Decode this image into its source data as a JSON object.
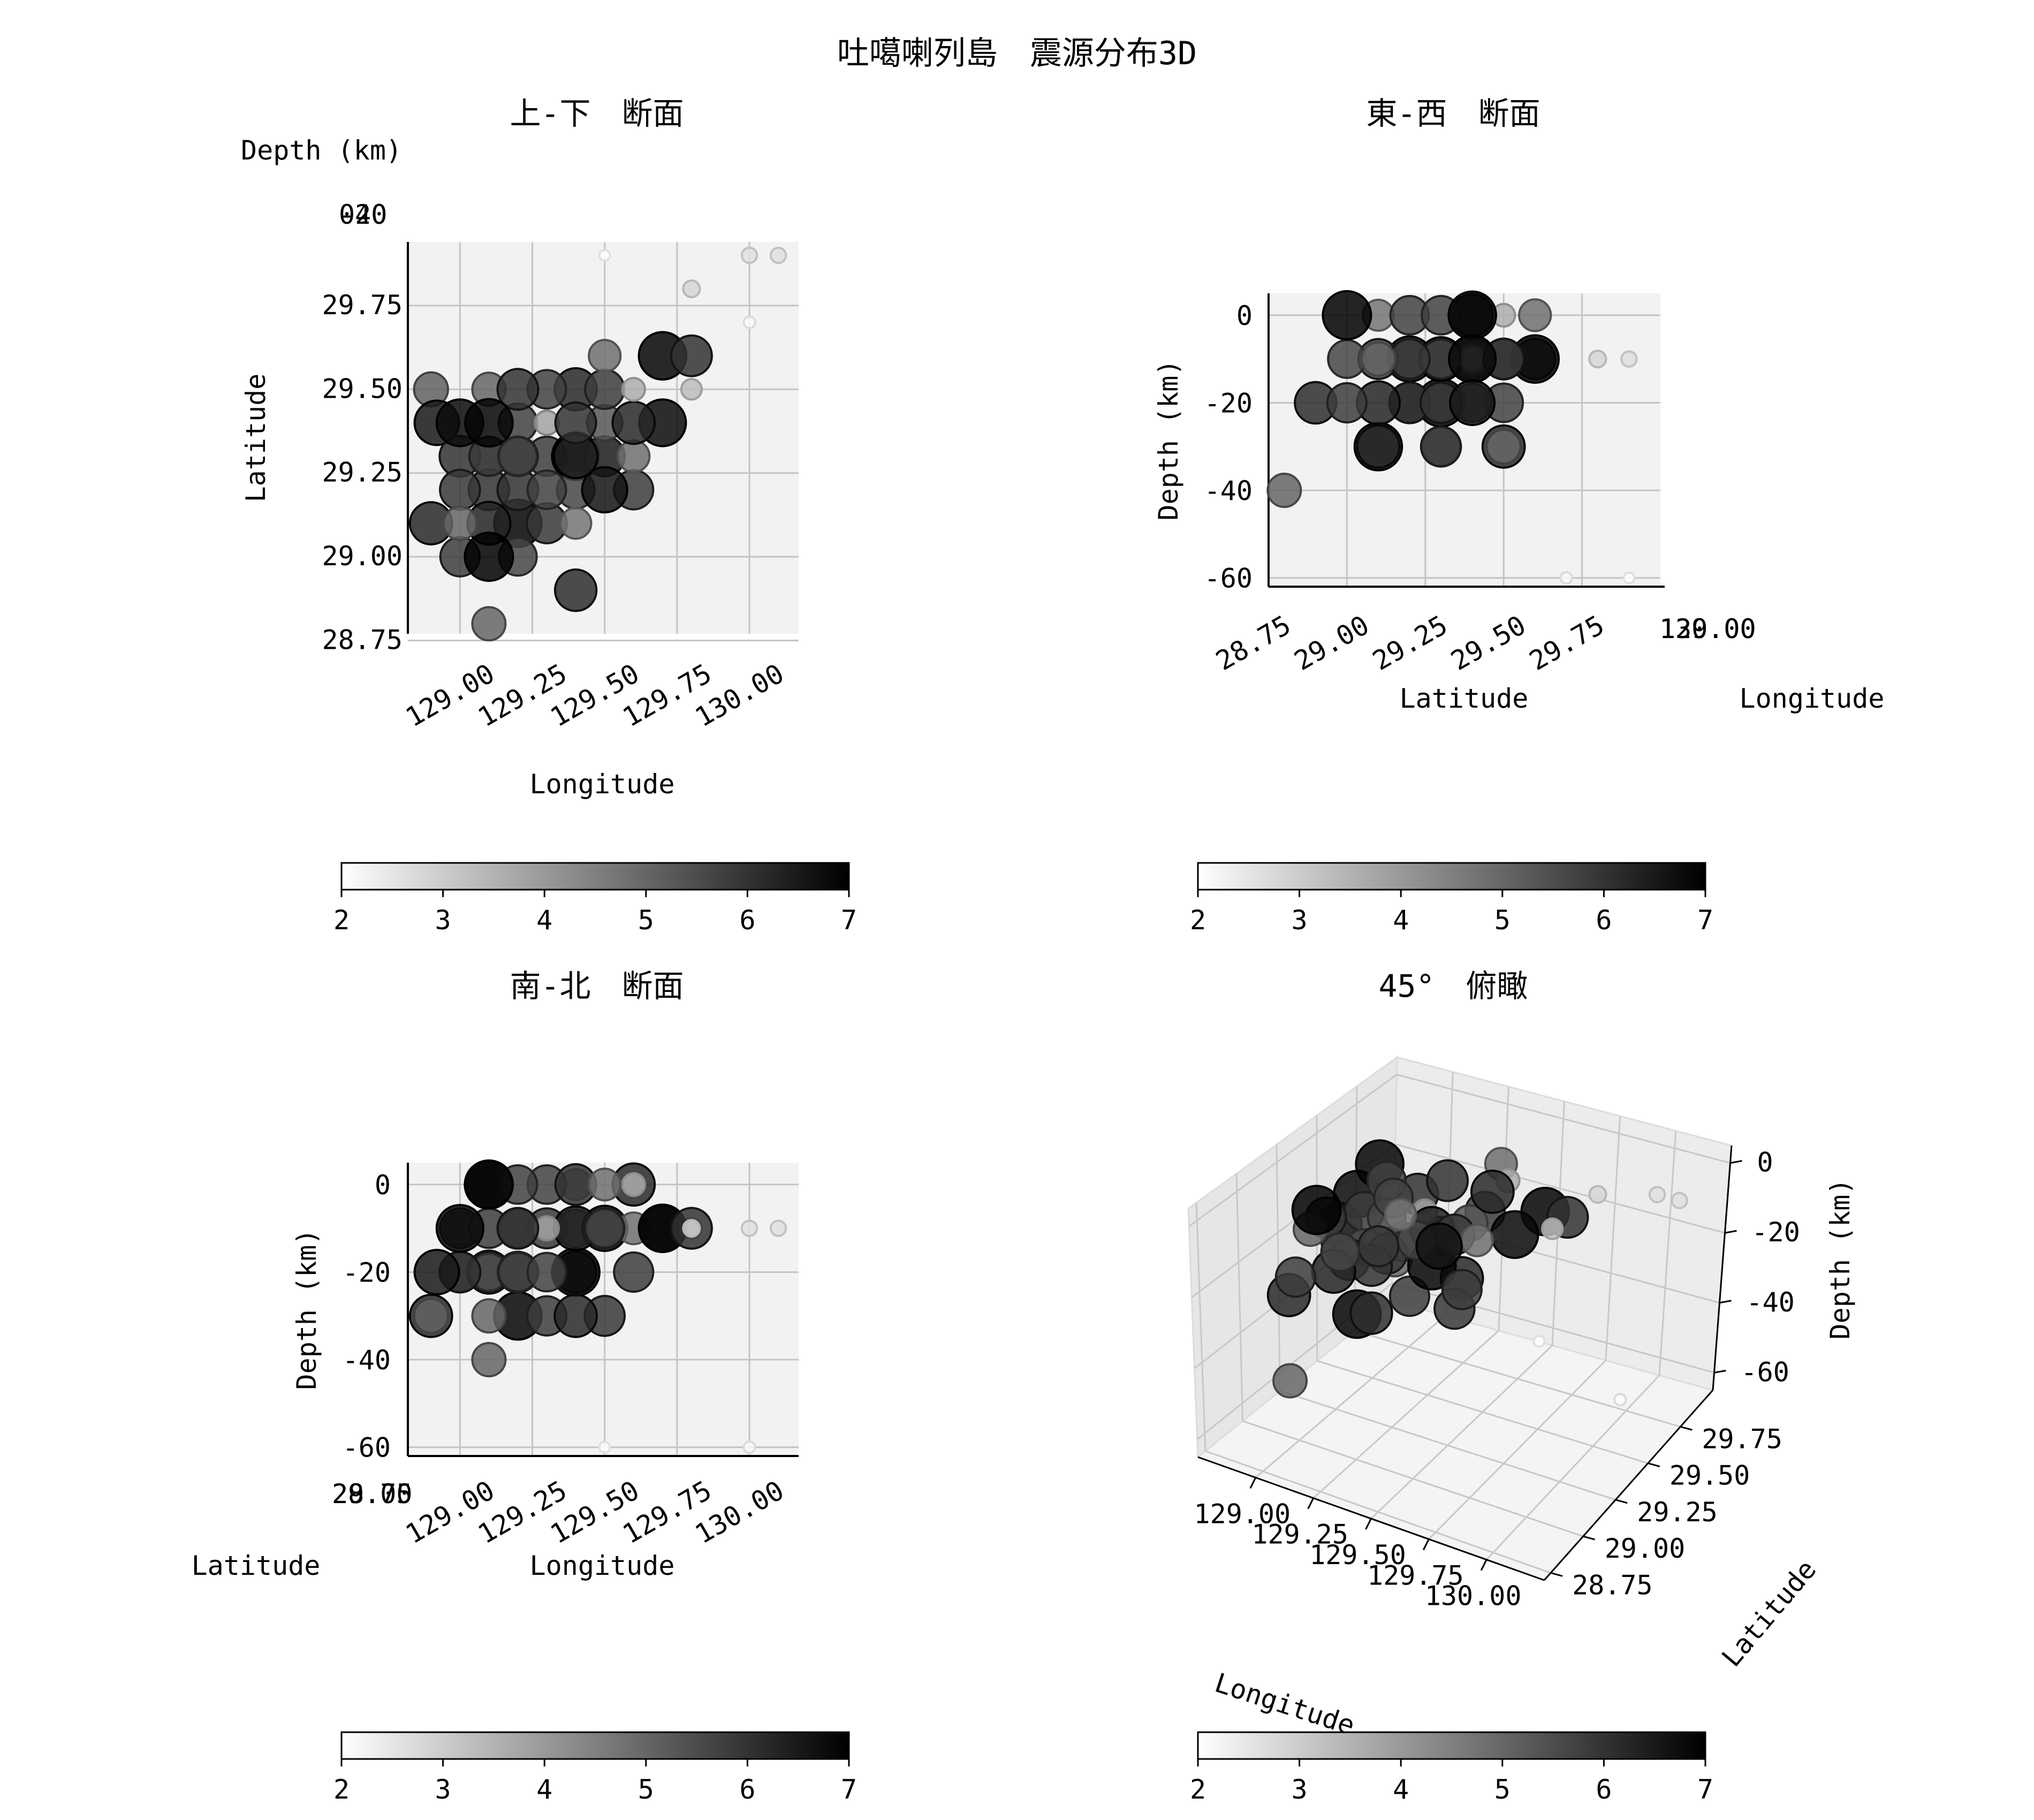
{
  "title": "吐噶喇列島　震源分布3D",
  "colorbar": {
    "min": 2,
    "max": 7,
    "ticks": [
      "2",
      "3",
      "4",
      "5",
      "6",
      "7"
    ]
  },
  "chart_data": [
    {
      "type": "scatter",
      "title": "上-下　断面",
      "xlabel": "Longitude",
      "ylabel": "Latitude",
      "zlabel": "Depth (km)",
      "xticks": [
        "129.00",
        "129.25",
        "129.50",
        "129.75",
        "130.00"
      ],
      "yticks": [
        "29.75",
        "29.50",
        "29.25",
        "29.00",
        "28.75"
      ],
      "zticks": [
        "-60",
        "-40",
        "-20",
        "0"
      ],
      "xlim": [
        128.82,
        130.17
      ],
      "ylim": [
        28.77,
        29.94
      ],
      "grid": true,
      "colorbar_range": [
        2,
        7
      ]
    },
    {
      "type": "scatter",
      "title": "東-西　断面",
      "xlabel": "Latitude",
      "ylabel": "Depth (km)",
      "zlabel": "Longitude",
      "xticks": [
        "28.75",
        "29.00",
        "29.25",
        "29.50",
        "29.75"
      ],
      "yticks": [
        "0",
        "-20",
        "-40",
        "-60"
      ],
      "zticks": [
        "129.00",
        "129.25",
        "129.50",
        "129.75",
        "130.00"
      ],
      "xlim": [
        28.75,
        30.0
      ],
      "ylim": [
        -62,
        5
      ],
      "grid": true,
      "colorbar_range": [
        2,
        7
      ]
    },
    {
      "type": "scatter",
      "title": "南-北　断面",
      "xlabel": "Longitude",
      "ylabel": "Depth (km)",
      "zlabel": "Latitude",
      "xticks": [
        "129.00",
        "129.25",
        "129.50",
        "129.75",
        "130.00"
      ],
      "yticks": [
        "0",
        "-20",
        "-40",
        "-60"
      ],
      "zticks": [
        "28.75",
        "29.00",
        "29.25",
        "29.50",
        "29.75"
      ],
      "xlim": [
        128.82,
        130.17
      ],
      "ylim": [
        -62,
        5
      ],
      "grid": true,
      "colorbar_range": [
        2,
        7
      ]
    },
    {
      "type": "scatter",
      "title": "45°　俯瞰",
      "xlabel": "Longitude",
      "ylabel": "Latitude",
      "zlabel": "Depth (km)",
      "xticks": [
        "129.00",
        "129.25",
        "129.50",
        "129.75",
        "130.00"
      ],
      "yticks": [
        "28.75",
        "29.00",
        "29.25",
        "29.50",
        "29.75"
      ],
      "zticks": [
        "0",
        "-20",
        "-40",
        "-60"
      ],
      "grid": true,
      "colorbar_range": [
        2,
        7
      ]
    }
  ],
  "events": [
    {
      "lon": 128.92,
      "lat": 29.4,
      "depth": -20,
      "mag": 6.5
    },
    {
      "lon": 129.0,
      "lat": 29.4,
      "depth": -10,
      "mag": 6.8
    },
    {
      "lon": 129.1,
      "lat": 29.4,
      "depth": 0,
      "mag": 6.9
    },
    {
      "lon": 129.1,
      "lat": 29.3,
      "depth": -10,
      "mag": 5.8
    },
    {
      "lon": 129.1,
      "lat": 29.3,
      "depth": -20,
      "mag": 5.5
    },
    {
      "lon": 129.2,
      "lat": 29.3,
      "depth": 0,
      "mag": 5.7
    },
    {
      "lon": 129.2,
      "lat": 29.3,
      "depth": -10,
      "mag": 5.6
    },
    {
      "lon": 129.2,
      "lat": 29.3,
      "depth": -20,
      "mag": 5.9
    },
    {
      "lon": 129.3,
      "lat": 29.3,
      "depth": -30,
      "mag": 5.8
    },
    {
      "lon": 129.4,
      "lat": 29.3,
      "depth": -20,
      "mag": 6.9
    },
    {
      "lon": 129.5,
      "lat": 29.3,
      "depth": -10,
      "mag": 5.9
    },
    {
      "lon": 129.5,
      "lat": 29.3,
      "depth": -30,
      "mag": 5.9
    },
    {
      "lon": 129.6,
      "lat": 29.3,
      "depth": -10,
      "mag": 4.8
    },
    {
      "lon": 129.0,
      "lat": 29.2,
      "depth": -10,
      "mag": 5.9
    },
    {
      "lon": 129.1,
      "lat": 29.2,
      "depth": -20,
      "mag": 6.0
    },
    {
      "lon": 129.2,
      "lat": 29.2,
      "depth": -20,
      "mag": 6.0
    },
    {
      "lon": 129.3,
      "lat": 29.2,
      "depth": 0,
      "mag": 5.7
    },
    {
      "lon": 129.4,
      "lat": 29.2,
      "depth": -10,
      "mag": 5.6
    },
    {
      "lon": 129.5,
      "lat": 29.2,
      "depth": -10,
      "mag": 6.6
    },
    {
      "lon": 129.6,
      "lat": 29.2,
      "depth": -20,
      "mag": 5.8
    },
    {
      "lon": 129.2,
      "lat": 29.4,
      "depth": -20,
      "mag": 5.7
    },
    {
      "lon": 129.3,
      "lat": 29.4,
      "depth": -10,
      "mag": 3.8
    },
    {
      "lon": 129.4,
      "lat": 29.4,
      "depth": 0,
      "mag": 6.0
    },
    {
      "lon": 129.5,
      "lat": 29.4,
      "depth": -10,
      "mag": 5.3
    },
    {
      "lon": 129.6,
      "lat": 29.4,
      "depth": 0,
      "mag": 6.2
    },
    {
      "lon": 129.7,
      "lat": 29.4,
      "depth": -10,
      "mag": 6.8
    },
    {
      "lon": 129.1,
      "lat": 29.5,
      "depth": -30,
      "mag": 5.0
    },
    {
      "lon": 129.2,
      "lat": 29.5,
      "depth": -10,
      "mag": 6.0
    },
    {
      "lon": 129.3,
      "lat": 29.5,
      "depth": -20,
      "mag": 5.7
    },
    {
      "lon": 129.4,
      "lat": 29.5,
      "depth": -30,
      "mag": 6.2
    },
    {
      "lon": 129.5,
      "lat": 29.5,
      "depth": -10,
      "mag": 5.8
    },
    {
      "lon": 129.6,
      "lat": 29.5,
      "depth": 0,
      "mag": 3.6
    },
    {
      "lon": 128.9,
      "lat": 29.5,
      "depth": -30,
      "mag": 5.1
    },
    {
      "lon": 129.5,
      "lat": 29.6,
      "depth": 0,
      "mag": 4.8
    },
    {
      "lon": 129.7,
      "lat": 29.6,
      "depth": -10,
      "mag": 6.9
    },
    {
      "lon": 129.8,
      "lat": 29.6,
      "depth": -10,
      "mag": 6.0
    },
    {
      "lon": 129.8,
      "lat": 29.5,
      "depth": -10,
      "mag": 3.3
    },
    {
      "lon": 129.8,
      "lat": 29.8,
      "depth": -10,
      "mag": 2.8
    },
    {
      "lon": 129.5,
      "lat": 29.9,
      "depth": -60,
      "mag": 2.0
    },
    {
      "lon": 130.0,
      "lat": 29.9,
      "depth": -10,
      "mag": 2.6
    },
    {
      "lon": 130.1,
      "lat": 29.9,
      "depth": -10,
      "mag": 2.6
    },
    {
      "lon": 130.0,
      "lat": 29.7,
      "depth": -60,
      "mag": 2.1
    },
    {
      "lon": 128.9,
      "lat": 29.1,
      "depth": -30,
      "mag": 6.2
    },
    {
      "lon": 129.0,
      "lat": 29.1,
      "depth": -10,
      "mag": 5.0
    },
    {
      "lon": 129.1,
      "lat": 29.1,
      "depth": -20,
      "mag": 6.3
    },
    {
      "lon": 129.2,
      "lat": 29.1,
      "depth": -30,
      "mag": 6.9
    },
    {
      "lon": 129.3,
      "lat": 29.1,
      "depth": -10,
      "mag": 5.9
    },
    {
      "lon": 129.4,
      "lat": 29.1,
      "depth": 0,
      "mag": 4.7
    },
    {
      "lon": 129.0,
      "lat": 29.0,
      "depth": -20,
      "mag": 5.8
    },
    {
      "lon": 129.1,
      "lat": 29.0,
      "depth": 0,
      "mag": 7.0
    },
    {
      "lon": 129.2,
      "lat": 29.0,
      "depth": -10,
      "mag": 5.6
    },
    {
      "lon": 129.4,
      "lat": 28.9,
      "depth": -20,
      "mag": 6.1
    },
    {
      "lon": 129.1,
      "lat": 28.8,
      "depth": -40,
      "mag": 5.0
    },
    {
      "lon": 129.4,
      "lat": 29.3,
      "depth": -10,
      "mag": 6.4
    },
    {
      "lon": 129.0,
      "lat": 29.3,
      "depth": -20,
      "mag": 6.0
    }
  ]
}
